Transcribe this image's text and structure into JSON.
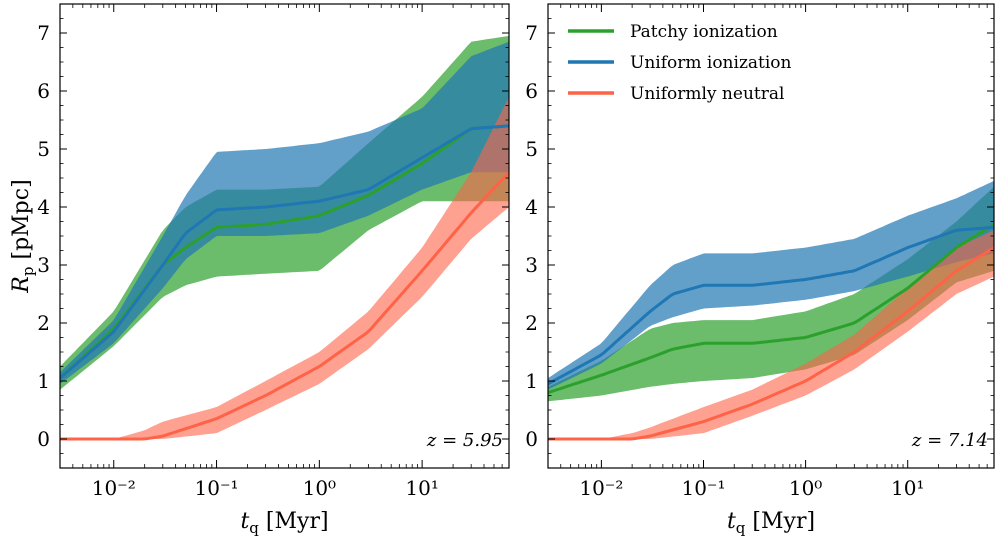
{
  "chart_data": [
    {
      "type": "area",
      "annotation": "z = 5.95",
      "xlabel": "t_q [Myr]",
      "ylabel": "R_p [pMpc]",
      "xscale": "log",
      "xlim": [
        0.003,
        70
      ],
      "ylim": [
        -0.5,
        7.5
      ],
      "yticks": [
        0,
        1,
        2,
        3,
        4,
        5,
        6,
        7
      ],
      "xticks": [
        0.01,
        0.1,
        1,
        10
      ],
      "xtick_labels": [
        "10⁻²",
        "10⁻¹",
        "10⁰",
        "10¹"
      ],
      "series": [
        {
          "name": "Patchy ionization",
          "color": "#2ca02c",
          "x": [
            0.003,
            0.01,
            0.03,
            0.05,
            0.1,
            0.3,
            1,
            3,
            10,
            30,
            70
          ],
          "median": [
            1.05,
            1.9,
            3.0,
            3.3,
            3.65,
            3.7,
            3.85,
            4.2,
            4.75,
            5.35,
            5.4
          ],
          "lower": [
            0.85,
            1.6,
            2.45,
            2.65,
            2.8,
            2.85,
            2.9,
            3.6,
            4.1,
            4.1,
            4.1
          ],
          "upper": [
            1.25,
            2.2,
            3.6,
            4.0,
            4.3,
            4.3,
            4.35,
            5.1,
            5.9,
            6.85,
            6.95
          ]
        },
        {
          "name": "Uniform ionization",
          "color": "#1f77b4",
          "x": [
            0.003,
            0.01,
            0.03,
            0.05,
            0.1,
            0.3,
            1,
            3,
            10,
            30,
            70
          ],
          "median": [
            1.05,
            1.85,
            3.0,
            3.55,
            3.95,
            4.0,
            4.1,
            4.3,
            4.85,
            5.35,
            5.4
          ],
          "lower": [
            0.95,
            1.65,
            2.6,
            3.1,
            3.5,
            3.5,
            3.55,
            3.85,
            4.3,
            4.6,
            4.6
          ],
          "upper": [
            1.15,
            2.05,
            3.5,
            4.2,
            4.95,
            5.0,
            5.1,
            5.3,
            5.7,
            6.6,
            6.85
          ]
        },
        {
          "name": "Uniformly neutral",
          "color": "#ff6347",
          "x": [
            0.003,
            0.01,
            0.02,
            0.03,
            0.1,
            0.3,
            1,
            3,
            10,
            30,
            70
          ],
          "median": [
            0.0,
            0.0,
            0.0,
            0.05,
            0.35,
            0.75,
            1.25,
            1.85,
            2.9,
            3.9,
            4.6
          ],
          "lower": [
            0.0,
            0.0,
            0.0,
            0.0,
            0.1,
            0.5,
            0.95,
            1.55,
            2.45,
            3.45,
            4.0
          ],
          "upper": [
            0.0,
            0.0,
            0.15,
            0.3,
            0.55,
            1.0,
            1.5,
            2.2,
            3.3,
            4.6,
            5.9
          ]
        }
      ]
    },
    {
      "type": "area",
      "annotation": "z = 7.14",
      "xlabel": "t_q [Myr]",
      "ylabel": "",
      "xscale": "log",
      "xlim": [
        0.003,
        70
      ],
      "ylim": [
        -0.5,
        7.5
      ],
      "yticks": [
        0,
        1,
        2,
        3,
        4,
        5,
        6,
        7
      ],
      "xticks": [
        0.01,
        0.1,
        1,
        10
      ],
      "xtick_labels": [
        "10⁻²",
        "10⁻¹",
        "10⁰",
        "10¹"
      ],
      "legend_position": "top-left",
      "series": [
        {
          "name": "Patchy ionization",
          "color": "#2ca02c",
          "x": [
            0.003,
            0.01,
            0.03,
            0.05,
            0.1,
            0.3,
            1,
            3,
            10,
            30,
            70
          ],
          "median": [
            0.8,
            1.1,
            1.4,
            1.55,
            1.65,
            1.65,
            1.75,
            2.0,
            2.6,
            3.3,
            3.7
          ],
          "lower": [
            0.65,
            0.75,
            0.9,
            0.95,
            1.0,
            1.05,
            1.2,
            1.45,
            2.05,
            2.7,
            2.9
          ],
          "upper": [
            0.9,
            1.35,
            1.9,
            2.0,
            2.05,
            2.05,
            2.2,
            2.5,
            3.1,
            3.75,
            4.35
          ]
        },
        {
          "name": "Uniform ionization",
          "color": "#1f77b4",
          "x": [
            0.003,
            0.01,
            0.03,
            0.05,
            0.1,
            0.3,
            1,
            3,
            10,
            30,
            70
          ],
          "median": [
            0.95,
            1.45,
            2.2,
            2.5,
            2.65,
            2.65,
            2.75,
            2.9,
            3.3,
            3.6,
            3.65
          ],
          "lower": [
            0.85,
            1.3,
            1.95,
            2.1,
            2.25,
            2.3,
            2.4,
            2.55,
            2.8,
            3.05,
            3.2
          ],
          "upper": [
            1.05,
            1.65,
            2.65,
            3.0,
            3.2,
            3.2,
            3.3,
            3.45,
            3.85,
            4.15,
            4.45
          ]
        },
        {
          "name": "Uniformly neutral",
          "color": "#ff6347",
          "x": [
            0.003,
            0.01,
            0.02,
            0.03,
            0.1,
            0.3,
            1,
            3,
            10,
            30,
            70
          ],
          "median": [
            0.0,
            0.0,
            0.0,
            0.05,
            0.3,
            0.6,
            1.0,
            1.5,
            2.2,
            2.9,
            3.3
          ],
          "lower": [
            0.0,
            0.0,
            0.0,
            0.0,
            0.1,
            0.4,
            0.75,
            1.2,
            1.85,
            2.5,
            2.8
          ],
          "upper": [
            0.0,
            0.0,
            0.1,
            0.2,
            0.55,
            0.85,
            1.3,
            1.8,
            2.6,
            3.3,
            3.6
          ]
        }
      ]
    }
  ]
}
